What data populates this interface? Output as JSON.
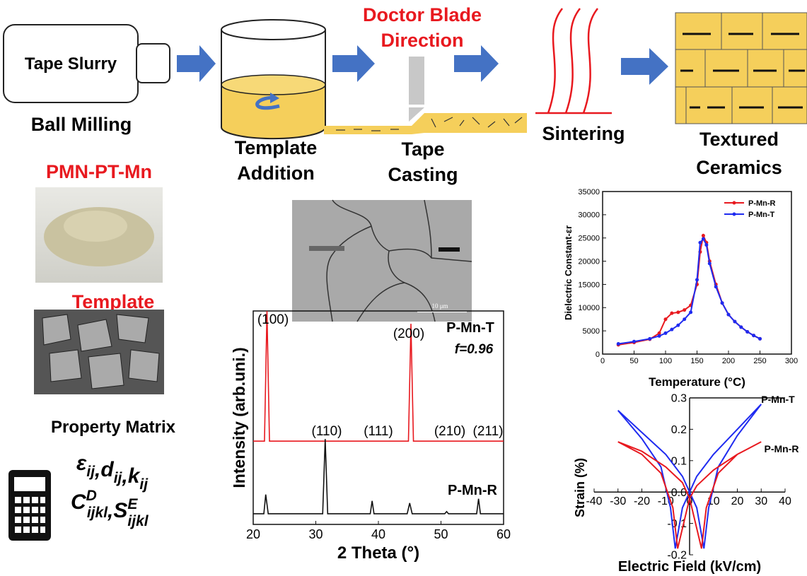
{
  "diagram": {
    "tape_slurry": "Tape Slurry",
    "ball_milling": "Ball Milling",
    "template_addition": [
      "Template",
      "Addition"
    ],
    "doctor_blade": [
      "Doctor Blade",
      "Direction"
    ],
    "tape_casting": [
      "Tape",
      "Casting"
    ],
    "sintering": "Sintering",
    "textured_ceramics": [
      "Textured",
      "Ceramics"
    ]
  },
  "materials": {
    "powder": "PMN-PT-Mn",
    "template": "Template",
    "micrograph_scale": "10 μm"
  },
  "property_matrix": {
    "title": "Property Matrix",
    "separator": ",",
    "line1": [
      {
        "sym": "ε",
        "sub": "ij"
      },
      {
        "sym": "d",
        "sub": "ij"
      },
      {
        "sym": "k",
        "sub": "ij"
      }
    ],
    "line2": [
      {
        "sym": "C",
        "sup": "D",
        "sub": "ijkl"
      },
      {
        "sym": "S",
        "sup": "E",
        "sub": "ijkl"
      }
    ]
  },
  "chart_data": [
    {
      "type": "line",
      "xlabel": "2 Theta (°)",
      "ylabel": "Intensity (arb.uni.)",
      "xlim": [
        20,
        60
      ],
      "xticks": [
        20,
        30,
        40,
        50,
        60
      ],
      "ylim": [
        0,
        100
      ],
      "annotations": [
        "P-Mn-T",
        "f=0.96",
        "P-Mn-R"
      ],
      "peak_labels": [
        "(100)",
        "(110)",
        "(111)",
        "(200)",
        "(210)",
        "(211)"
      ],
      "series": [
        {
          "name": "P-Mn-T",
          "color": "#e8191f",
          "x": [
            20,
            21.8,
            22.2,
            22.6,
            44.8,
            45.2,
            45.6,
            60
          ],
          "values": [
            39,
            39,
            100,
            39,
            39,
            94,
            39,
            39
          ]
        },
        {
          "name": "P-Mn-R",
          "color": "#111111",
          "x": [
            20,
            21.7,
            22.0,
            22.4,
            31.1,
            31.5,
            31.9,
            38.7,
            39.0,
            39.3,
            44.6,
            45.0,
            45.4,
            50.6,
            50.9,
            51.2,
            55.7,
            56.0,
            56.3,
            60
          ],
          "values": [
            5,
            5,
            14,
            5,
            5,
            40,
            5,
            5,
            11,
            5,
            5,
            10,
            5,
            5,
            6,
            5,
            5,
            12,
            5,
            5
          ]
        }
      ]
    },
    {
      "type": "line",
      "xlabel": "Temperature (°C)",
      "ylabel": "Dielectric Constant-εr",
      "xlim": [
        0,
        300
      ],
      "xticks": [
        0,
        50,
        100,
        150,
        200,
        250,
        300
      ],
      "ylim": [
        0,
        35000
      ],
      "yticks": [
        0,
        5000,
        10000,
        15000,
        20000,
        25000,
        30000,
        35000
      ],
      "legend": "upper right",
      "markers": true,
      "x": [
        25,
        50,
        75,
        90,
        100,
        110,
        120,
        130,
        140,
        150,
        155,
        160,
        165,
        170,
        180,
        190,
        200,
        210,
        220,
        230,
        240,
        250
      ],
      "series": [
        {
          "name": "P-Mn-R",
          "color": "#e8191f",
          "values": [
            2000,
            2500,
            3200,
            4500,
            7500,
            8800,
            9000,
            9500,
            10500,
            15000,
            22000,
            25500,
            24000,
            20000,
            15000,
            11000,
            8500,
            7000,
            5800,
            4800,
            4000,
            3300
          ]
        },
        {
          "name": "P-Mn-T",
          "color": "#1f2bf0",
          "values": [
            2200,
            2700,
            3300,
            3900,
            4500,
            5300,
            6200,
            7500,
            9000,
            16000,
            24000,
            24800,
            23500,
            19500,
            14500,
            11000,
            8500,
            7000,
            5800,
            4800,
            4000,
            3300
          ]
        }
      ]
    },
    {
      "type": "loop",
      "xlabel": "Electric Field (kV/cm)",
      "ylabel": "Strain (%)",
      "xlim": [
        -40,
        40
      ],
      "xticks": [
        -40,
        -30,
        -20,
        -10,
        0,
        10,
        20,
        30,
        40
      ],
      "ylim": [
        -0.2,
        0.3
      ],
      "yticks": [
        -0.2,
        -0.1,
        {
          "value": 0,
          "label": "0.0"
        },
        0.1,
        0.2,
        0.3
      ],
      "series": [
        {
          "name": "P-Mn-T",
          "color": "#1f2bf0",
          "x": [
            30,
            20,
            10,
            3,
            0,
            -3,
            -6,
            -8,
            -12,
            -20,
            -30,
            -20,
            -10,
            -3,
            0,
            3,
            6,
            8,
            12,
            20,
            30
          ],
          "values": [
            0.28,
            0.2,
            0.12,
            0.05,
            0.0,
            -0.05,
            -0.18,
            -0.05,
            0.08,
            0.17,
            0.26,
            0.19,
            0.12,
            0.05,
            0.0,
            -0.05,
            -0.18,
            -0.05,
            0.08,
            0.18,
            0.28
          ]
        },
        {
          "name": "P-Mn-R",
          "color": "#e8191f",
          "x": [
            30,
            20,
            10,
            3,
            0,
            -5,
            -7,
            -12,
            -20,
            -30,
            -20,
            -10,
            -3,
            0,
            5,
            7,
            12,
            20,
            30
          ],
          "values": [
            0.16,
            0.12,
            0.07,
            0.02,
            -0.02,
            -0.18,
            -0.05,
            0.06,
            0.12,
            0.16,
            0.13,
            0.08,
            0.03,
            -0.02,
            -0.18,
            -0.05,
            0.06,
            0.12,
            0.16
          ]
        }
      ]
    }
  ]
}
